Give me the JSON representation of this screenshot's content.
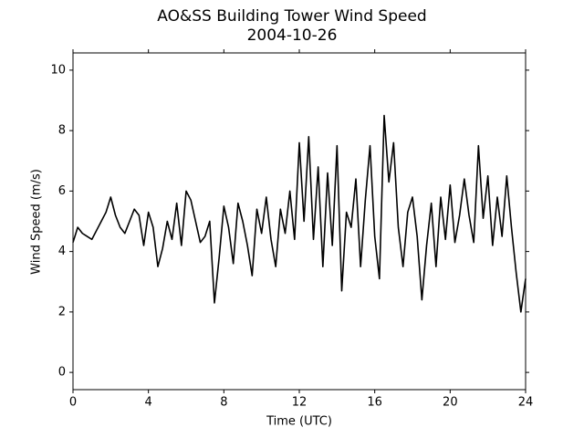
{
  "chart_data": {
    "type": "line",
    "title": "AO&SS Building Tower Wind Speed",
    "subtitle": "2004-10-26",
    "x_label": "Time (UTC)",
    "y_label": "Wind Speed (m/s)",
    "xlim": [
      0,
      24
    ],
    "ylim": [
      -0.57,
      10.57
    ],
    "xticks": [
      0,
      4,
      8,
      12,
      16,
      20,
      24
    ],
    "yticks": [
      0,
      2,
      4,
      6,
      8,
      10
    ],
    "grid": false,
    "series": [
      {
        "color": "#000000",
        "x": [
          0,
          0.25,
          0.5,
          0.75,
          1,
          1.25,
          1.5,
          1.75,
          2,
          2.25,
          2.5,
          2.75,
          3,
          3.25,
          3.5,
          3.75,
          4,
          4.25,
          4.5,
          4.75,
          5,
          5.25,
          5.5,
          5.75,
          6,
          6.25,
          6.5,
          6.75,
          7,
          7.25,
          7.5,
          7.75,
          8,
          8.25,
          8.5,
          8.75,
          9,
          9.25,
          9.5,
          9.75,
          10,
          10.25,
          10.5,
          10.75,
          11,
          11.25,
          11.5,
          11.75,
          12,
          12.25,
          12.5,
          12.75,
          13,
          13.25,
          13.5,
          13.75,
          14,
          14.25,
          14.5,
          14.75,
          15,
          15.25,
          15.5,
          15.75,
          16,
          16.25,
          16.5,
          16.75,
          17,
          17.25,
          17.5,
          17.75,
          18,
          18.25,
          18.5,
          18.75,
          19,
          19.25,
          19.5,
          19.75,
          20,
          20.25,
          20.5,
          20.75,
          21,
          21.25,
          21.5,
          21.75,
          22,
          22.25,
          22.5,
          22.75,
          23,
          23.25,
          23.5,
          23.75,
          24
        ],
        "values": [
          4.3,
          4.8,
          4.6,
          4.5,
          4.4,
          4.7,
          5.0,
          5.3,
          5.8,
          5.2,
          4.8,
          4.6,
          5.0,
          5.4,
          5.2,
          4.2,
          5.3,
          4.8,
          3.5,
          4.1,
          5.0,
          4.4,
          5.6,
          4.2,
          6.0,
          5.7,
          5.0,
          4.3,
          4.5,
          5.0,
          2.3,
          3.8,
          5.5,
          4.8,
          3.6,
          5.6,
          5.0,
          4.2,
          3.2,
          5.4,
          4.6,
          5.8,
          4.4,
          3.5,
          5.4,
          4.6,
          6.0,
          4.4,
          7.6,
          5.0,
          7.8,
          4.4,
          6.8,
          3.5,
          6.6,
          4.2,
          7.5,
          2.7,
          5.3,
          4.8,
          6.4,
          3.5,
          5.7,
          7.5,
          4.5,
          3.1,
          8.5,
          6.3,
          7.6,
          4.8,
          3.5,
          5.3,
          5.8,
          4.5,
          2.4,
          4.2,
          5.6,
          3.5,
          5.8,
          4.4,
          6.2,
          4.3,
          5.2,
          6.4,
          5.2,
          4.3,
          7.5,
          5.1,
          6.5,
          4.2,
          5.8,
          4.5,
          6.5,
          4.8,
          3.3,
          2.0,
          3.1
        ]
      }
    ]
  }
}
